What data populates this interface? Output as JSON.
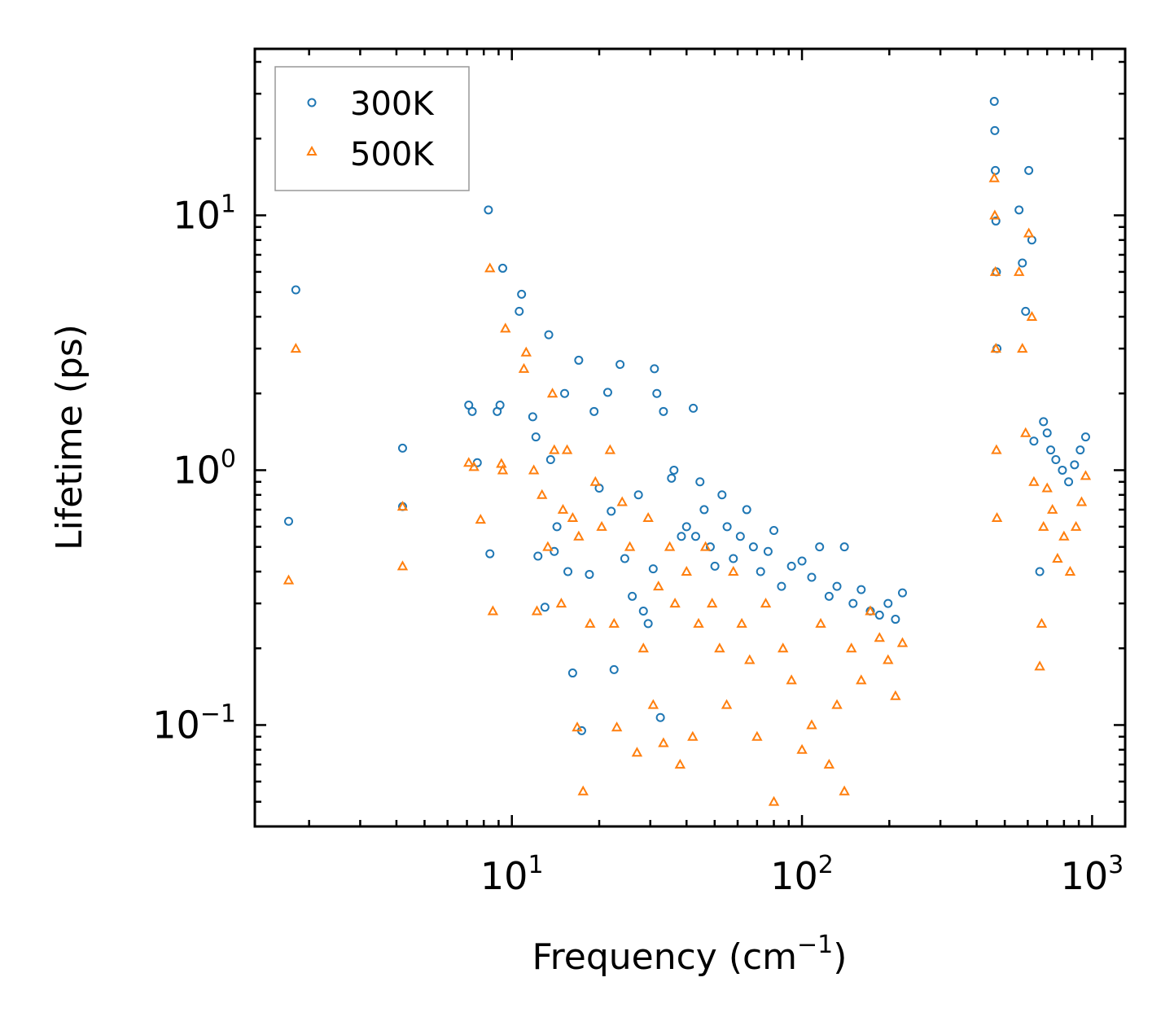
{
  "chart_data": {
    "type": "scatter",
    "title": "",
    "xlabel": "Frequency (cm",
    "xlabel_sup": "−1",
    "xlabel_end": ")",
    "ylabel": "Lifetime (ps)",
    "xscale": "log",
    "yscale": "log",
    "xlim": [
      1.3,
      1300
    ],
    "ylim": [
      0.04,
      45
    ],
    "x_ticks": [
      {
        "value": 10,
        "base": "10",
        "exp": "1"
      },
      {
        "value": 100,
        "base": "10",
        "exp": "2"
      },
      {
        "value": 1000,
        "base": "10",
        "exp": "3"
      }
    ],
    "y_ticks": [
      {
        "value": 0.1,
        "base": "10",
        "exp": "−1"
      },
      {
        "value": 1,
        "base": "10",
        "exp": "0"
      },
      {
        "value": 10,
        "base": "10",
        "exp": "1"
      }
    ],
    "legend": {
      "position": "top-left"
    },
    "series": [
      {
        "name": "300K",
        "marker": "circle",
        "color": "#1f77b4",
        "x": [
          1.7,
          1.8,
          4.2,
          4.2,
          7.1,
          7.3,
          7.6,
          8.3,
          8.4,
          8.9,
          9.1,
          9.3,
          10.6,
          10.8,
          11.8,
          12.1,
          12.3,
          13.0,
          13.4,
          13.6,
          14.0,
          14.3,
          15.2,
          15.6,
          16.2,
          17.0,
          17.4,
          18.5,
          19.2,
          20.0,
          21.4,
          22.0,
          22.5,
          23.6,
          24.5,
          26.0,
          27.3,
          28.4,
          29.5,
          30.7,
          31.0,
          31.6,
          32.5,
          33.3,
          35.5,
          36.2,
          38.4,
          40.0,
          42.2,
          43.0,
          44.5,
          46.0,
          48.3,
          50.1,
          53.0,
          55.2,
          58.0,
          61.3,
          64.5,
          68.0,
          72.0,
          76.4,
          80.0,
          85.0,
          92.0,
          100.0,
          108.0,
          115.0,
          124.0,
          132.0,
          140.0,
          150.0,
          160.0,
          172.0,
          185.0,
          198.0,
          210.0,
          222.0,
          460.0,
          462.0,
          464.0,
          466.0,
          468.0,
          470.0,
          560.0,
          575.0,
          590.0,
          605.0,
          620.0,
          630.0,
          660.0,
          680.0,
          700.0,
          720.0,
          750.0,
          790.0,
          830.0,
          870.0,
          910.0,
          950.0
        ],
        "y": [
          0.63,
          5.1,
          1.22,
          0.72,
          1.8,
          1.7,
          1.07,
          10.5,
          0.47,
          1.7,
          1.8,
          6.2,
          4.2,
          4.9,
          1.62,
          1.35,
          0.46,
          0.29,
          3.4,
          1.1,
          0.48,
          0.6,
          2.0,
          0.4,
          0.16,
          2.7,
          0.095,
          0.39,
          1.7,
          0.85,
          2.02,
          0.69,
          0.165,
          2.6,
          0.45,
          0.32,
          0.8,
          0.28,
          0.25,
          0.41,
          2.5,
          2.0,
          0.107,
          1.7,
          0.93,
          1.0,
          0.55,
          0.6,
          1.75,
          0.55,
          0.9,
          0.7,
          0.5,
          0.42,
          0.8,
          0.6,
          0.45,
          0.55,
          0.7,
          0.5,
          0.4,
          0.48,
          0.58,
          0.35,
          0.42,
          0.44,
          0.38,
          0.5,
          0.32,
          0.35,
          0.5,
          0.3,
          0.34,
          0.28,
          0.27,
          0.3,
          0.26,
          0.33,
          28.0,
          21.5,
          15.0,
          9.5,
          6.0,
          3.0,
          10.5,
          6.5,
          4.2,
          15.0,
          8.0,
          1.3,
          0.4,
          1.55,
          1.4,
          1.2,
          1.1,
          1.0,
          0.9,
          1.05,
          1.2,
          1.35
        ]
      },
      {
        "name": "500K",
        "marker": "triangle",
        "color": "#ff7f0e",
        "x": [
          1.7,
          1.8,
          4.2,
          4.2,
          7.1,
          7.4,
          7.8,
          8.4,
          8.6,
          9.2,
          9.3,
          9.5,
          11.0,
          11.2,
          11.9,
          12.2,
          12.7,
          13.3,
          13.8,
          14.0,
          14.8,
          15.0,
          15.5,
          16.2,
          16.8,
          17.0,
          17.6,
          18.6,
          19.4,
          20.4,
          21.8,
          22.5,
          23.0,
          24.0,
          25.5,
          27.0,
          28.4,
          29.5,
          30.7,
          32.0,
          33.3,
          35.0,
          36.5,
          38.0,
          40.0,
          42.0,
          44.0,
          46.5,
          49.0,
          52.0,
          55.0,
          58.0,
          62.0,
          66.0,
          70.0,
          75.0,
          80.0,
          86.0,
          92.0,
          100.0,
          108.0,
          116.0,
          124.0,
          132.0,
          140.0,
          148.0,
          160.0,
          172.0,
          185.0,
          198.0,
          210.0,
          222.0,
          460.0,
          462.0,
          464.0,
          466.0,
          468.0,
          470.0,
          560.0,
          575.0,
          590.0,
          605.0,
          620.0,
          630.0,
          660.0,
          670.0,
          680.0,
          700.0,
          730.0,
          760.0,
          800.0,
          840.0,
          880.0,
          920.0,
          950.0
        ],
        "y": [
          0.37,
          3.0,
          0.72,
          0.42,
          1.07,
          1.03,
          0.64,
          6.2,
          0.28,
          1.06,
          1.0,
          3.6,
          2.5,
          2.9,
          1.0,
          0.28,
          0.8,
          0.5,
          2.0,
          1.2,
          0.3,
          0.7,
          1.2,
          0.65,
          0.098,
          0.55,
          0.055,
          0.25,
          0.9,
          0.6,
          1.2,
          0.25,
          0.098,
          0.75,
          0.5,
          0.078,
          0.2,
          0.65,
          0.12,
          0.35,
          0.085,
          0.5,
          0.3,
          0.07,
          0.4,
          0.09,
          0.25,
          0.5,
          0.3,
          0.2,
          0.12,
          0.4,
          0.25,
          0.18,
          0.09,
          0.3,
          0.05,
          0.2,
          0.15,
          0.08,
          0.1,
          0.25,
          0.07,
          0.12,
          0.055,
          0.2,
          0.15,
          0.28,
          0.22,
          0.18,
          0.13,
          0.21,
          14.0,
          10.0,
          6.0,
          3.0,
          1.2,
          0.65,
          6.0,
          3.0,
          1.4,
          8.5,
          4.0,
          0.9,
          0.17,
          0.25,
          0.6,
          0.85,
          0.7,
          0.45,
          0.55,
          0.4,
          0.6,
          0.75,
          0.95
        ]
      }
    ]
  }
}
